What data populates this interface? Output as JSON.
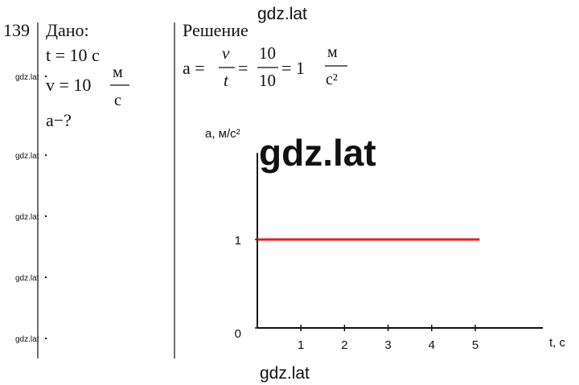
{
  "problem_number": "139",
  "given": {
    "title": "Дано:",
    "time": "t = 10 с",
    "speed": "v = 10",
    "speed_unit_num": "м",
    "speed_unit_den": "с",
    "find": "a−?"
  },
  "solution": {
    "title": "Решение",
    "lhs": "a =",
    "frac1_num": "v",
    "frac1_den": "t",
    "eq1": "=",
    "frac2_num": "10",
    "frac2_den": "10",
    "eq2": "= 1",
    "unit_num": "м",
    "unit_den": "с²"
  },
  "watermarks": {
    "top": "gdz.lat",
    "big": "gdz.lat",
    "bottom": "gdz.lat",
    "side": [
      "gdz.lat",
      "gdz.lat",
      "gdz.lat",
      "gdz.lat",
      "gdz.lat"
    ]
  },
  "chart_data": {
    "type": "line",
    "y_label": "a, м/с²",
    "x_label": "t, с",
    "x": [
      0,
      5.1
    ],
    "series": [
      {
        "color": "#e0201c",
        "values": [
          1,
          1
        ]
      }
    ],
    "xlim": [
      0,
      6.55
    ],
    "ylim": [
      0,
      1.98
    ],
    "xticks": [
      1,
      2,
      3,
      4,
      5
    ],
    "yticks": [
      0,
      1
    ]
  }
}
